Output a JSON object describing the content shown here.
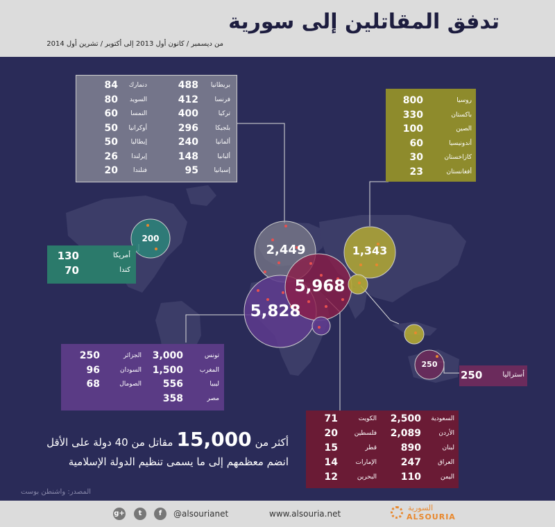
{
  "header": {
    "title": "تدفق المقاتلين إلى سورية",
    "subtitle": "من ديسمبر / كانون أول 2013  إلى أكتوبر / تشرين أول 2014"
  },
  "europe_box": {
    "color": "#7a7a86",
    "col_right": [
      {
        "name": "بريطانيا",
        "value": "488"
      },
      {
        "name": "فرنسا",
        "value": "412"
      },
      {
        "name": "تركيا",
        "value": "400"
      },
      {
        "name": "بلجيكا",
        "value": "296"
      },
      {
        "name": "ألمانيا",
        "value": "240"
      },
      {
        "name": "ألبانيا",
        "value": "148"
      },
      {
        "name": "إسبانيا",
        "value": "95"
      }
    ],
    "col_left": [
      {
        "name": "دنمارك",
        "value": "84"
      },
      {
        "name": "السويد",
        "value": "80"
      },
      {
        "name": "النمسا",
        "value": "60"
      },
      {
        "name": "أوكرانيا",
        "value": "50"
      },
      {
        "name": "إيطاليا",
        "value": "50"
      },
      {
        "name": "إيرلندا",
        "value": "26"
      },
      {
        "name": "فنلندا",
        "value": "20"
      }
    ]
  },
  "asia_box": {
    "color": "#8c8a2a",
    "rows": [
      {
        "name": "روسيا",
        "value": "800"
      },
      {
        "name": "باكستان",
        "value": "330"
      },
      {
        "name": "الصين",
        "value": "100"
      },
      {
        "name": "أندونيسيا",
        "value": "60"
      },
      {
        "name": "كازاخستان",
        "value": "30"
      },
      {
        "name": "أفغانستان",
        "value": "23"
      }
    ]
  },
  "america_box": {
    "color": "#2a7a6a",
    "rows": [
      {
        "name": "أمريكا",
        "value": "130"
      },
      {
        "name": "كندا",
        "value": "70"
      }
    ]
  },
  "africa_box": {
    "color": "#5a3a84",
    "col_right": [
      {
        "name": "تونس",
        "value": "3,000"
      },
      {
        "name": "المغرب",
        "value": "1,500"
      },
      {
        "name": "ليبيا",
        "value": "556"
      },
      {
        "name": "مصر",
        "value": "358"
      }
    ],
    "col_left": [
      {
        "name": "الجزائر",
        "value": "250"
      },
      {
        "name": "السودان",
        "value": "96"
      },
      {
        "name": "الصومال",
        "value": "68"
      }
    ]
  },
  "australia_box": {
    "color": "#6a2a5a",
    "name": "أستراليا",
    "value": "250"
  },
  "middle_east_box": {
    "color": "#6a1a34",
    "col_right": [
      {
        "name": "السعودية",
        "value": "2,500"
      },
      {
        "name": "الأردن",
        "value": "2,089"
      },
      {
        "name": "لبنان",
        "value": "890"
      },
      {
        "name": "العراق",
        "value": "247"
      },
      {
        "name": "اليمن",
        "value": "110"
      }
    ],
    "col_left": [
      {
        "name": "الكويت",
        "value": "71"
      },
      {
        "name": "فلسطين",
        "value": "20"
      },
      {
        "name": "قطر",
        "value": "15"
      },
      {
        "name": "الإمارات",
        "value": "14"
      },
      {
        "name": "البحرين",
        "value": "12"
      }
    ]
  },
  "bubbles": {
    "america": "200",
    "europe": "2,449",
    "asia": "1,343",
    "middle_east": "5,968",
    "africa": "5,828",
    "australia": "250"
  },
  "total": {
    "prefix": "أكثر من",
    "number": "15,000",
    "suffix": "مقاتل من 40 دولة على الأقل",
    "line2": "انضم معظمهم إلى ما يسمى تنظيم الدولة الإسلامية"
  },
  "source": "المصدر: واشنطن بوست",
  "footer": {
    "handle": "@alsourianet",
    "website": "www.alsouria.net",
    "logo_ar": "السورية",
    "logo_en": "ALSOURIA",
    "icons": [
      "google-plus-icon",
      "twitter-icon",
      "facebook-icon"
    ]
  }
}
